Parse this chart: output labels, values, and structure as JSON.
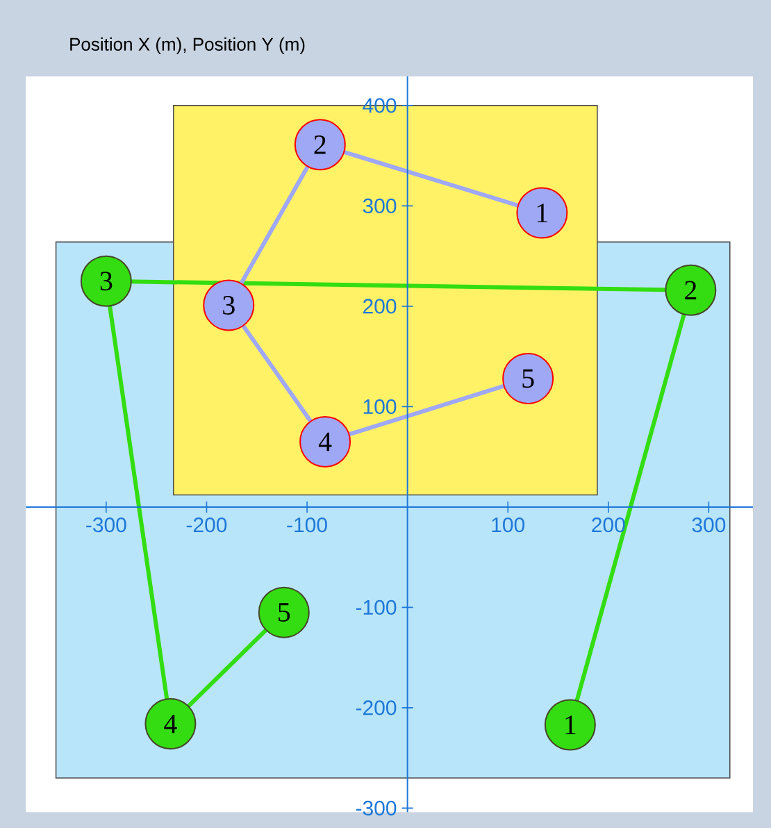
{
  "chart_data": {
    "type": "line",
    "title": "Position X (m), Position Y (m)",
    "xlim": [
      -380,
      344
    ],
    "ylim": [
      -304,
      429
    ],
    "xticks": [
      -300,
      -200,
      -100,
      100,
      200,
      300
    ],
    "yticks": [
      -300,
      -200,
      -100,
      100,
      200,
      300,
      400
    ],
    "marker": "circle",
    "series": [
      {
        "type": "line",
        "color": "#b9e5fa",
        "x": [
          -350,
          321
        ],
        "values": [
          null,
          null
        ],
        "lower": [
          -270,
          -270
        ],
        "upper": [
          264,
          264
        ]
      },
      {
        "type": "line",
        "color": "#fff266",
        "x": [
          -233,
          189
        ],
        "values": [
          null,
          null
        ],
        "lower": [
          12,
          12
        ],
        "upper": [
          400,
          400
        ]
      },
      {
        "type": "line",
        "color": "#33dd11",
        "x": [
          162,
          282,
          -300,
          -236,
          -123
        ],
        "values": [
          -217,
          216,
          225,
          -216,
          -105
        ]
      },
      {
        "type": "line",
        "color": "#9fa8f5",
        "x": [
          134,
          -87,
          -178,
          -82,
          120
        ],
        "values": [
          293,
          361,
          201,
          65,
          128
        ]
      }
    ],
    "annotations": [
      {
        "text": "1",
        "x": 162,
        "y": -217
      },
      {
        "text": "2",
        "x": 282,
        "y": 216
      },
      {
        "text": "3",
        "x": -300,
        "y": 225
      },
      {
        "text": "4",
        "x": -236,
        "y": -216
      },
      {
        "text": "5",
        "x": -123,
        "y": -105
      },
      {
        "text": "1",
        "x": 134,
        "y": 293
      },
      {
        "text": "2",
        "x": -87,
        "y": 361
      },
      {
        "text": "3",
        "x": -178,
        "y": 201
      },
      {
        "text": "4",
        "x": -82,
        "y": 65
      },
      {
        "text": "5",
        "x": 120,
        "y": 128
      }
    ]
  }
}
